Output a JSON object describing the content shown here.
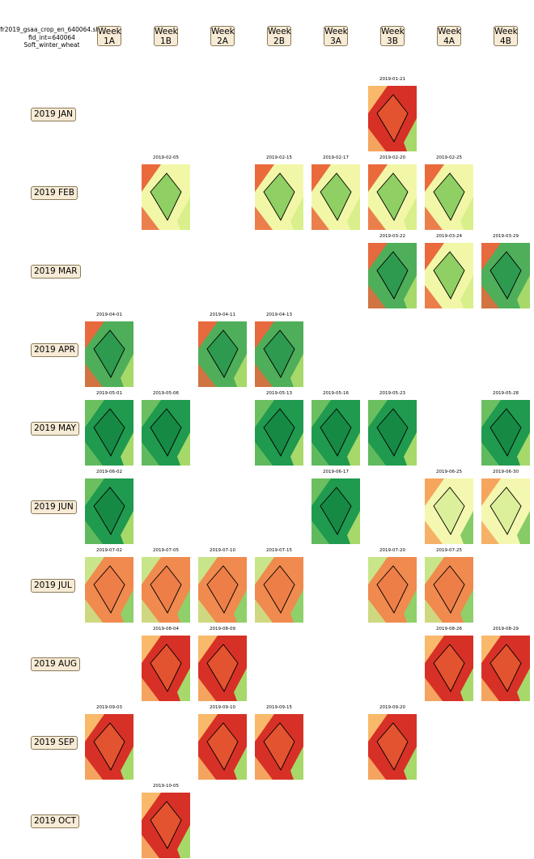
{
  "figure": {
    "title_lines": [
      "fr2019_gsaa_crop_en_640064.shp",
      "fid_int=640064",
      "Soft_winter_wheat"
    ]
  },
  "columns": [
    [
      "Week",
      "1A"
    ],
    [
      "Week",
      "1B"
    ],
    [
      "Week",
      "2A"
    ],
    [
      "Week",
      "2B"
    ],
    [
      "Week",
      "3A"
    ],
    [
      "Week",
      "3B"
    ],
    [
      "Week",
      "4A"
    ],
    [
      "Week",
      "4B"
    ]
  ],
  "rows": [
    {
      "label": "2019 JAN",
      "tiles": [
        {
          "col": 5,
          "date": "2019-01-21",
          "tone": "red"
        }
      ]
    },
    {
      "label": "2019 FEB",
      "tiles": [
        {
          "col": 1,
          "date": "2019-02-05",
          "tone": "lightgreen"
        },
        {
          "col": 3,
          "date": "2019-02-15",
          "tone": "lightgreen"
        },
        {
          "col": 4,
          "date": "2019-02-17",
          "tone": "lightgreen"
        },
        {
          "col": 5,
          "date": "2019-02-20",
          "tone": "lightgreen"
        },
        {
          "col": 6,
          "date": "2019-02-25",
          "tone": "lightgreen"
        }
      ]
    },
    {
      "label": "2019 MAR",
      "tiles": [
        {
          "col": 5,
          "date": "2019-03-22",
          "tone": "green"
        },
        {
          "col": 6,
          "date": "2019-03-24",
          "tone": "lightgreen"
        },
        {
          "col": 7,
          "date": "2019-03-29",
          "tone": "green"
        }
      ]
    },
    {
      "label": "2019 APR",
      "tiles": [
        {
          "col": 0,
          "date": "2019-04-01",
          "tone": "green"
        },
        {
          "col": 2,
          "date": "2019-04-11",
          "tone": "green"
        },
        {
          "col": 3,
          "date": "2019-04-13",
          "tone": "green"
        }
      ]
    },
    {
      "label": "2019 MAY",
      "tiles": [
        {
          "col": 0,
          "date": "2019-05-01",
          "tone": "darkgreen"
        },
        {
          "col": 1,
          "date": "2019-05-06",
          "tone": "darkgreen"
        },
        {
          "col": 3,
          "date": "2019-05-13",
          "tone": "darkgreen"
        },
        {
          "col": 4,
          "date": "2019-05-16",
          "tone": "darkgreen"
        },
        {
          "col": 5,
          "date": "2019-05-23",
          "tone": "darkgreen"
        },
        {
          "col": 7,
          "date": "2019-05-28",
          "tone": "darkgreen"
        }
      ]
    },
    {
      "label": "2019 JUN",
      "tiles": [
        {
          "col": 0,
          "date": "2019-06-02",
          "tone": "darkgreen"
        },
        {
          "col": 4,
          "date": "2019-06-17",
          "tone": "darkgreen"
        },
        {
          "col": 6,
          "date": "2019-06-25",
          "tone": "yellow"
        },
        {
          "col": 7,
          "date": "2019-06-30",
          "tone": "yellow"
        }
      ]
    },
    {
      "label": "2019 JUL",
      "tiles": [
        {
          "col": 0,
          "date": "2019-07-02",
          "tone": "orange"
        },
        {
          "col": 1,
          "date": "2019-07-05",
          "tone": "orange"
        },
        {
          "col": 2,
          "date": "2019-07-10",
          "tone": "orange"
        },
        {
          "col": 3,
          "date": "2019-07-15",
          "tone": "orange"
        },
        {
          "col": 5,
          "date": "2019-07-20",
          "tone": "orange"
        },
        {
          "col": 6,
          "date": "2019-07-25",
          "tone": "orange"
        }
      ]
    },
    {
      "label": "2019 AUG",
      "tiles": [
        {
          "col": 1,
          "date": "2019-08-04",
          "tone": "red"
        },
        {
          "col": 2,
          "date": "2019-08-09",
          "tone": "red"
        },
        {
          "col": 6,
          "date": "2019-08-26",
          "tone": "red"
        },
        {
          "col": 7,
          "date": "2019-08-29",
          "tone": "red"
        }
      ]
    },
    {
      "label": "2019 SEP",
      "tiles": [
        {
          "col": 0,
          "date": "2019-09-03",
          "tone": "red"
        },
        {
          "col": 2,
          "date": "2019-09-10",
          "tone": "red"
        },
        {
          "col": 3,
          "date": "2019-09-15",
          "tone": "red"
        },
        {
          "col": 5,
          "date": "2019-09-20",
          "tone": "red"
        }
      ]
    },
    {
      "label": "2019 OCT",
      "tiles": [
        {
          "col": 1,
          "date": "2019-10-05",
          "tone": "red"
        }
      ]
    }
  ],
  "tones": {
    "red": {
      "bg": "#d73027",
      "field": "#e4532f",
      "corner": "#f9b96a",
      "strip": "#a6d96a"
    },
    "lightgreen": {
      "bg": "#f2f7a8",
      "field": "#8fcf63",
      "corner": "#ea6a3c",
      "strip": "#d9ef8b"
    },
    "green": {
      "bg": "#4fae5a",
      "field": "#2e9a4f",
      "corner": "#e66a3d",
      "strip": "#a6d96a"
    },
    "darkgreen": {
      "bg": "#1f9a4f",
      "field": "#168a45",
      "corner": "#6bbf5f",
      "strip": "#a6d96a"
    },
    "yellow": {
      "bg": "#f4f7b0",
      "field": "#dcef9a",
      "corner": "#f6a55d",
      "strip": "#86cb66"
    },
    "orange": {
      "bg": "#f08a4e",
      "field": "#ee7e48",
      "corner": "#c9e58a",
      "strip": "#8fd06a"
    }
  }
}
